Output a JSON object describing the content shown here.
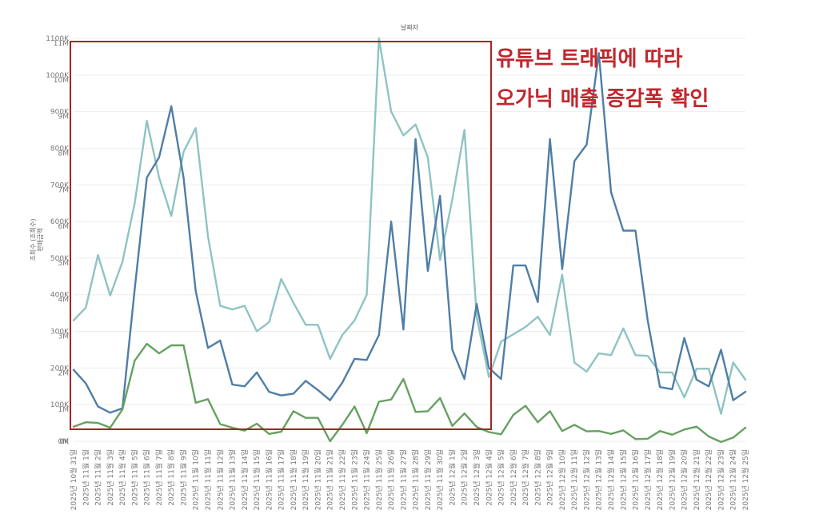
{
  "chart_data": {
    "type": "line",
    "title": "날짜자",
    "ylabel_lines": [
      "조회수 (조회수)",
      "판매금액"
    ],
    "left_axis_ticks": [
      "0K",
      "100K",
      "200K",
      "300K",
      "400K",
      "500K",
      "600K",
      "700K",
      "800K",
      "900K",
      "1000K",
      "1100K"
    ],
    "right_axis_ticks": [
      "0M",
      "1M",
      "2M",
      "3M",
      "4M",
      "5M",
      "6M",
      "7M",
      "8M",
      "9M",
      "10M",
      "11M"
    ],
    "left_ylim": [
      0,
      1100000
    ],
    "right_ylim": [
      0,
      11000000
    ],
    "categories": [
      "2025년 10월 31일",
      "2025년 11월 1일",
      "2025년 11월 2일",
      "2025년 11월 3일",
      "2025년 11월 4일",
      "2025년 11월 5일",
      "2025년 11월 6일",
      "2025년 11월 7일",
      "2025년 11월 8일",
      "2025년 11월 9일",
      "2025년 11월 10일",
      "2025년 11월 11일",
      "2025년 11월 12일",
      "2025년 11월 13일",
      "2025년 11월 14일",
      "2025년 11월 15일",
      "2025년 11월 16일",
      "2025년 11월 17일",
      "2025년 11월 18일",
      "2025년 11월 19일",
      "2025년 11월 20일",
      "2025년 11월 21일",
      "2025년 11월 22일",
      "2025년 11월 23일",
      "2025년 11월 24일",
      "2025년 11월 25일",
      "2025년 11월 26일",
      "2025년 11월 27일",
      "2025년 11월 28일",
      "2025년 11월 29일",
      "2025년 11월 30일",
      "2025년 12월 1일",
      "2025년 12월 2일",
      "2025년 12월 3일",
      "2025년 12월 4일",
      "2025년 12월 5일",
      "2025년 12월 6일",
      "2025년 12월 7일",
      "2025년 12월 8일",
      "2025년 12월 9일",
      "2025년 12월 10일",
      "2025년 12월 11일",
      "2025년 12월 12일",
      "2025년 12월 13일",
      "2025년 12월 14일",
      "2025년 12월 15일",
      "2025년 12월 16일",
      "2025년 12월 17일",
      "2025년 12월 18일",
      "2025년 12월 19일",
      "2025년 12월 20일",
      "2025년 12월 21일",
      "2025년 12월 22일",
      "2025년 12월 23일",
      "2025년 12월 24일",
      "2025년 12월 25일"
    ],
    "series": [
      {
        "color": "#8ec4c2",
        "axis": "left",
        "values": [
          330000,
          365000,
          508000,
          398000,
          490000,
          650000,
          875000,
          720000,
          615000,
          790000,
          855000,
          560000,
          370000,
          360000,
          370000,
          300000,
          325000,
          443000,
          378000,
          318000,
          318000,
          225000,
          290000,
          330000,
          400000,
          1100000,
          900000,
          835000,
          865000,
          775000,
          495000,
          660000,
          850000,
          340000,
          175000,
          272000,
          292000,
          312000,
          340000,
          290000,
          455000,
          215000,
          190000,
          240000,
          235000,
          308000,
          235000,
          233000,
          188000,
          188000,
          120000,
          198000,
          198000,
          75000,
          215000,
          168000
        ]
      },
      {
        "color": "#4f7ea6",
        "axis": "left",
        "values": [
          195000,
          158000,
          95000,
          78000,
          90000,
          415000,
          720000,
          775000,
          915000,
          720000,
          410000,
          255000,
          275000,
          155000,
          150000,
          188000,
          135000,
          125000,
          130000,
          165000,
          140000,
          112000,
          160000,
          225000,
          222000,
          290000,
          600000,
          305000,
          825000,
          465000,
          670000,
          250000,
          170000,
          375000,
          200000,
          170000,
          480000,
          480000,
          380000,
          825000,
          470000,
          765000,
          810000,
          1060000,
          680000,
          575000,
          575000,
          330000,
          148000,
          142000,
          282000,
          168000,
          150000,
          250000,
          112000,
          135000
        ]
      },
      {
        "color": "#66a161",
        "axis": "left",
        "values": [
          40000,
          52000,
          50000,
          37000,
          87000,
          220000,
          266000,
          240000,
          262000,
          262000,
          105000,
          115000,
          47000,
          37000,
          29000,
          48000,
          20000,
          26000,
          82000,
          64000,
          64000,
          0,
          45000,
          95000,
          22000,
          108000,
          114000,
          170000,
          80000,
          82000,
          118000,
          42000,
          76000,
          39000,
          25000,
          19000,
          72000,
          97000,
          52000,
          82000,
          28000,
          45000,
          27000,
          28000,
          20000,
          30000,
          6000,
          7000,
          28000,
          18000,
          32000,
          40000,
          13000,
          -2000,
          10000,
          37000
        ]
      }
    ]
  },
  "annotation": {
    "line1": "유튜브 트래픽에 따라",
    "line2": "오가닉 매출 증감폭 확인",
    "color": "#c1272d"
  }
}
